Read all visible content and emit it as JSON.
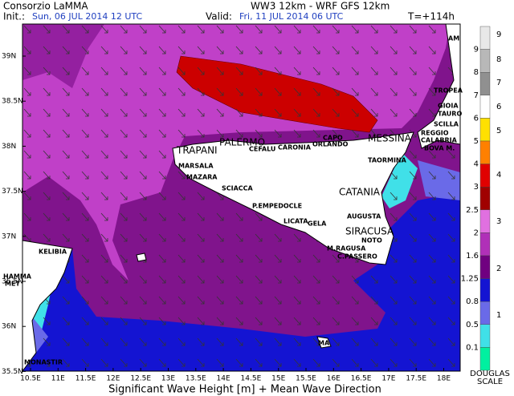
{
  "header": {
    "org": "Consorzio LaMMA",
    "model": "WW3 12km - WRF GFS 12km",
    "init_label": "Init.:",
    "init": "Sun, 06 JUL 2014   12 UTC",
    "valid_label": "Valid:",
    "valid": "Fri, 11 JUL 2014   06 UTC",
    "lead": "T=+114h"
  },
  "lat_labels": [
    "39N",
    "38.5N",
    "38N",
    "37.5N",
    "37N",
    "36.5N",
    "36N",
    "35.5N"
  ],
  "lon_labels": [
    "10.5E",
    "11E",
    "11.5E",
    "12E",
    "12.5E",
    "13E",
    "13.5E",
    "14E",
    "14.5E",
    "15E",
    "15.5E",
    "16E",
    "16.5E",
    "17E",
    "17.5E",
    "18E"
  ],
  "places": [
    "AM",
    "TROPEA",
    "GIOIA",
    "TAURO",
    "SCILLA",
    "REGGIO",
    "CALABRIA",
    "BOVA M.",
    "MESSINA",
    "CAPO",
    "ORLANDO",
    "CARONIA",
    "CEFALU",
    "PALERMO",
    "TRAPANI",
    "MARSALA",
    "MAZARA",
    "SCIACCA",
    "P.EMPEDOCLE",
    "LICATA",
    "GELA",
    "TAORMINA",
    "CATANIA",
    "AUGUSTA",
    "SIRACUSA",
    "NOTO",
    "M.RAGUSA",
    "C.PASSERO",
    "KELIBIA",
    "HAMMA",
    "MET",
    "MONASTIR",
    "MA"
  ],
  "scale": {
    "heights": [
      "9",
      "8",
      "7",
      "6",
      "5",
      "4",
      "3",
      "2.5",
      "2",
      "1.6",
      "1.25",
      "0.8",
      "0.5",
      "0.1"
    ],
    "douglas": [
      "9",
      "8",
      "7",
      "6",
      "5",
      "4",
      "3",
      "2",
      "1"
    ],
    "title_1": "DOUGLAS",
    "title_2": "SCALE"
  },
  "footer": "Significant Wave Height [m] + Mean Wave Direction"
}
